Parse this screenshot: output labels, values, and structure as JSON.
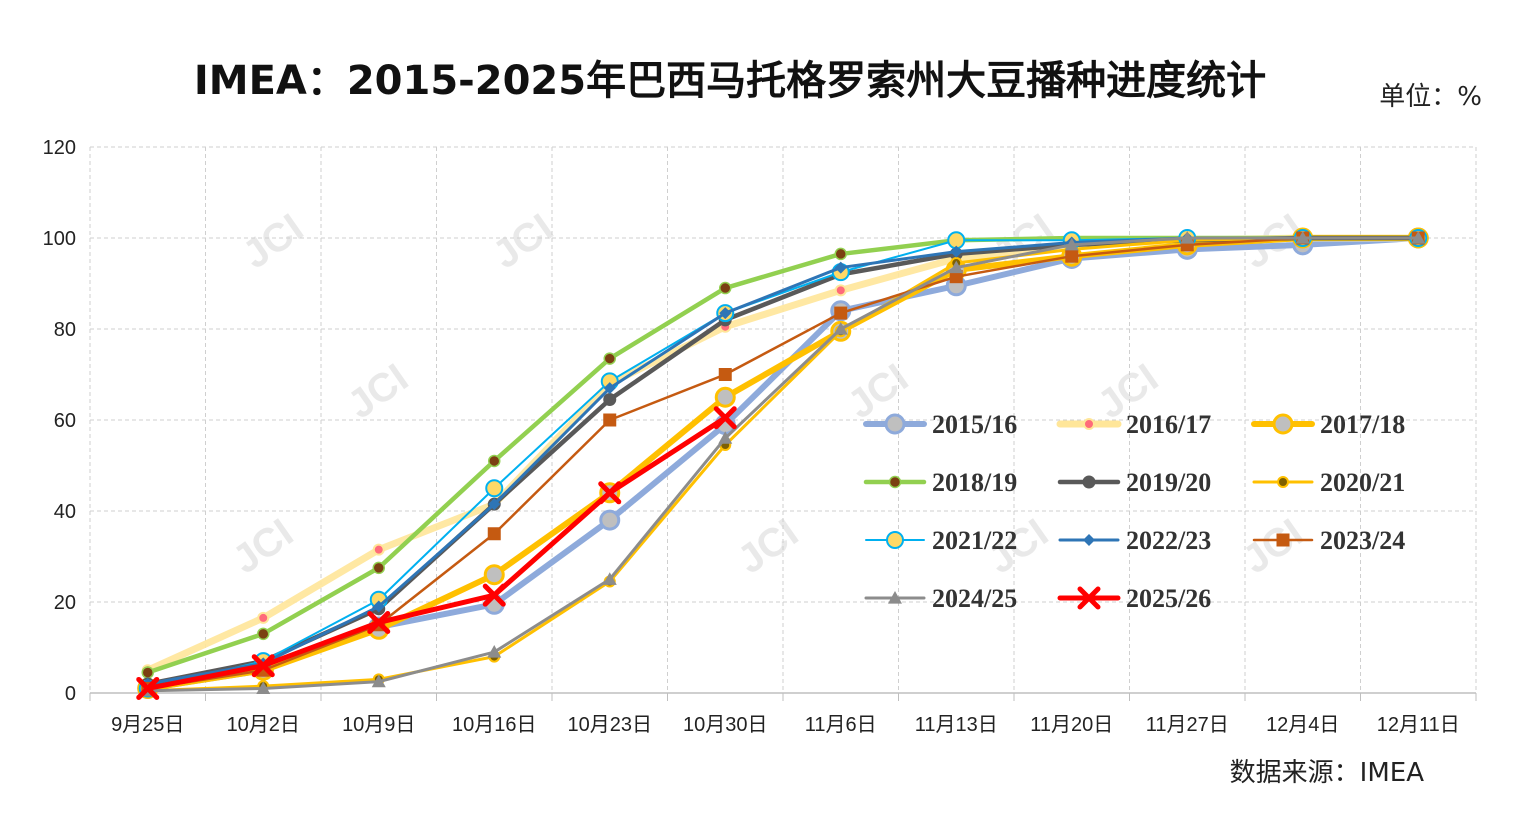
{
  "title": "IMEA：2015-2025年巴西马托格罗索州大豆播种进度统计",
  "unit": "单位：%",
  "source": "数据来源：IMEA",
  "watermark": "JCI",
  "chart_data": {
    "type": "line",
    "categories": [
      "9月25日",
      "10月2日",
      "10月9日",
      "10月16日",
      "10月23日",
      "10月30日",
      "11月6日",
      "11月13日",
      "11月20日",
      "11月27日",
      "12月4日",
      "12月11日"
    ],
    "ylim": [
      0,
      120
    ],
    "yticks": [
      0,
      20,
      40,
      60,
      80,
      100,
      120
    ],
    "grid": true,
    "legend_position": "center-right inside plot",
    "series": [
      {
        "name": "2015/16",
        "color": "#8eaadb",
        "marker": "circle",
        "values": [
          1,
          5,
          14.5,
          19.5,
          38,
          59,
          84,
          89.5,
          95.5,
          97.5,
          98.5,
          100
        ]
      },
      {
        "name": "2016/17",
        "color": "#ffe699",
        "marker": "dot-pink",
        "values": [
          5,
          16.5,
          31.5,
          41.5,
          68,
          80.5,
          88.5,
          95.5,
          98.5,
          99.5,
          100,
          100
        ]
      },
      {
        "name": "2017/18",
        "color": "#ffc000",
        "marker": "circle",
        "values": [
          1,
          5,
          14,
          26,
          44,
          65,
          79.5,
          93,
          96,
          98.5,
          100,
          100
        ]
      },
      {
        "name": "2018/19",
        "color": "#92d050",
        "marker": "dot-brown",
        "values": [
          4.5,
          13,
          27.5,
          51,
          73.5,
          89,
          96.5,
          99.5,
          100,
          100,
          100,
          100
        ]
      },
      {
        "name": "2019/20",
        "color": "#595959",
        "marker": "dot",
        "values": [
          2,
          7,
          18.5,
          41.5,
          64.5,
          82,
          92,
          96.5,
          98.5,
          99.5,
          100,
          100
        ]
      },
      {
        "name": "2020/21",
        "color": "#ffc000",
        "marker": "dot-olive",
        "values": [
          0.5,
          1.5,
          3,
          8,
          24.5,
          54.5,
          79.5,
          94.5,
          97.5,
          99.5,
          100,
          100
        ]
      },
      {
        "name": "2021/22",
        "color": "#00b0f0",
        "marker": "circle-open",
        "values": [
          1,
          7,
          20.5,
          45,
          68.5,
          83.5,
          92.5,
          99.5,
          99.5,
          100,
          100,
          100
        ]
      },
      {
        "name": "2022/23",
        "color": "#2e75b6",
        "marker": "diamond",
        "values": [
          2,
          6.5,
          19,
          41.5,
          67,
          83.5,
          93.5,
          97,
          99,
          100,
          100,
          100
        ]
      },
      {
        "name": "2023/24",
        "color": "#c55a11",
        "marker": "square",
        "values": [
          1,
          5,
          15,
          35,
          60,
          70,
          83.5,
          91.5,
          96,
          98.5,
          100,
          100
        ]
      },
      {
        "name": "2024/25",
        "color": "#8c8c8c",
        "marker": "triangle",
        "values": [
          0.5,
          1,
          2.5,
          9,
          25,
          56,
          80,
          93.5,
          98.5,
          100,
          100,
          100
        ]
      },
      {
        "name": "2025/26",
        "color": "#ff0000",
        "marker": "x",
        "values": [
          1,
          6,
          15.5,
          21.5,
          44,
          60.5,
          null,
          null,
          null,
          null,
          null,
          null
        ]
      }
    ]
  }
}
